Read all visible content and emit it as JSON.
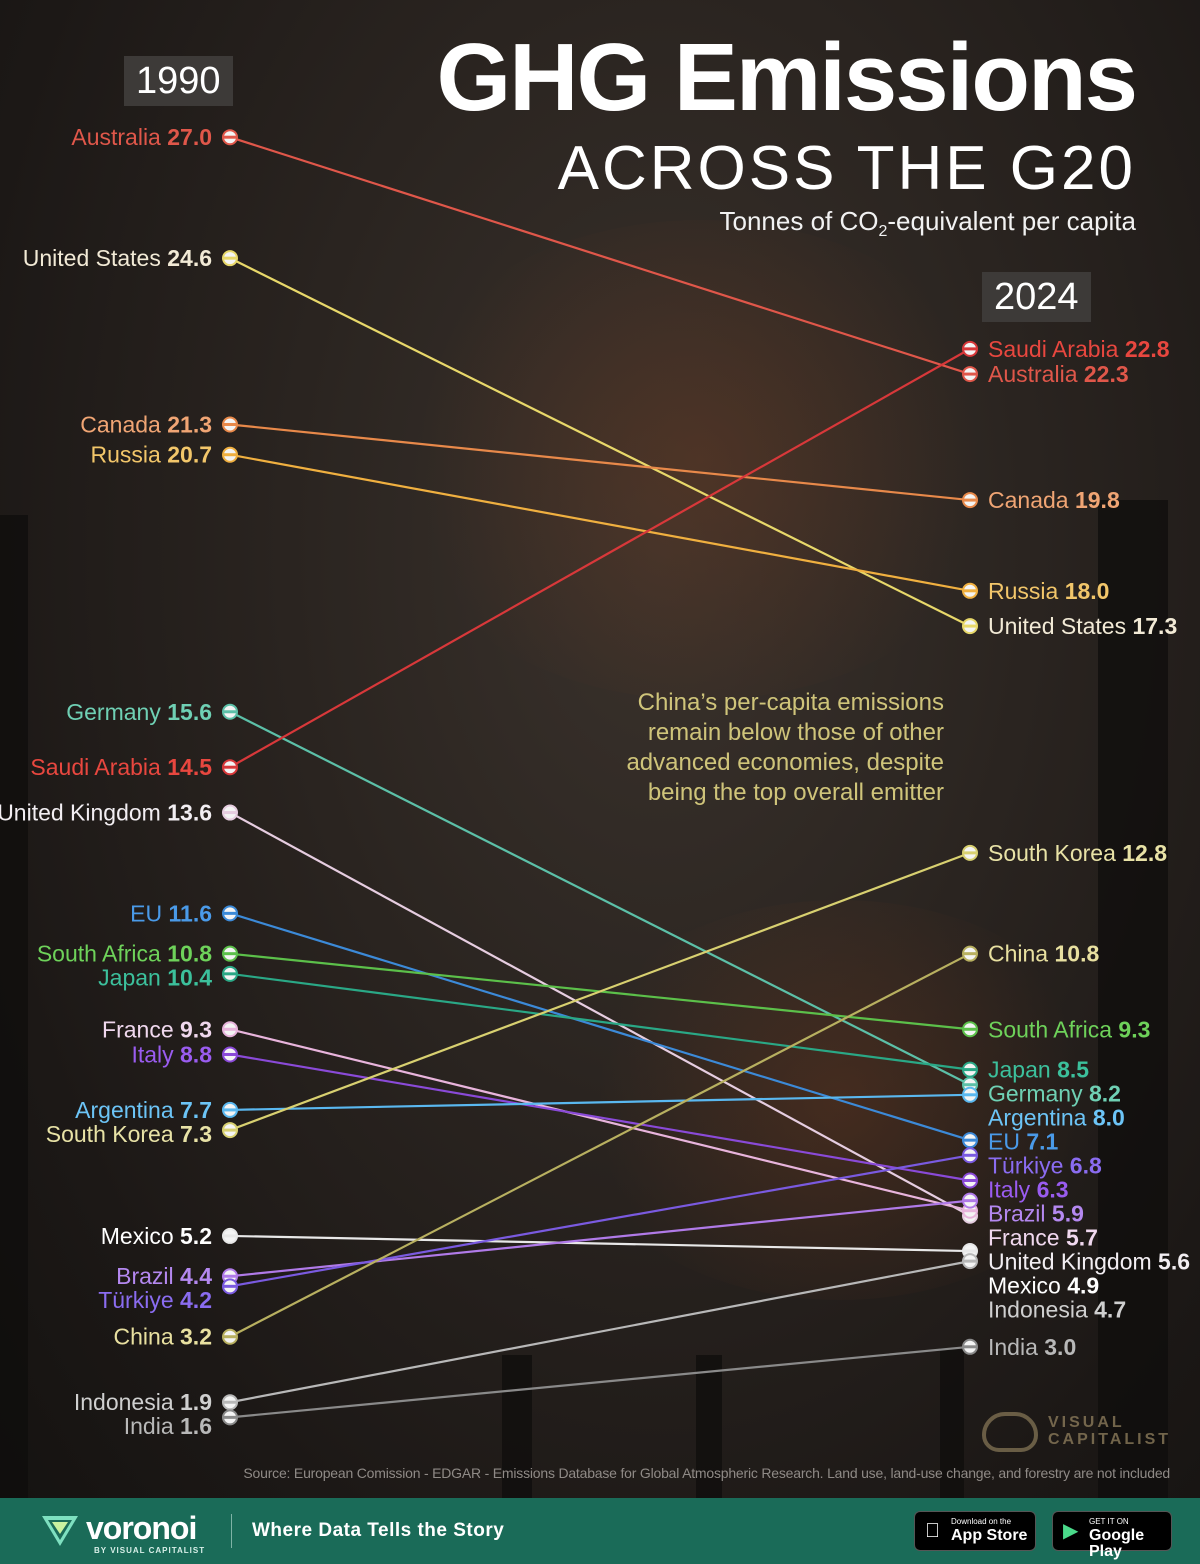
{
  "header": {
    "title": "GHG Emissions",
    "subtitle": "ACROSS THE G20",
    "unit_label": "Tonnes of CO₂-equivalent per capita"
  },
  "years": {
    "left": "1990",
    "right": "2024"
  },
  "annotation": "China’s per-capita emissions remain below those of other advanced economies, despite being the top overall emitter",
  "source": "Source: European Comission - EDGAR - Emissions Database for Global Atmospheric Research. Land use, land-use change, and forestry are not included",
  "brand": {
    "vc_logo_text": "VISUAL CAPITALIST",
    "footer_logo": "voronoi",
    "footer_logo_by": "BY VISUAL CAPITALIST",
    "tagline": "Where Data Tells the Story",
    "app_store_small": "Download on the",
    "app_store_big": "App Store",
    "google_play_small": "GET IT ON",
    "google_play_big": "Google Play"
  },
  "chart_data": {
    "type": "slope",
    "x": [
      "1990",
      "2024"
    ],
    "unit": "Tonnes of CO₂-equivalent per capita",
    "series": [
      {
        "name": "Australia",
        "values": [
          27.0,
          22.3
        ],
        "color": "#e0574a",
        "label_color": "#e0574a"
      },
      {
        "name": "United States",
        "values": [
          24.6,
          17.3
        ],
        "color": "#e8d86a",
        "label_color": "#f2ead6"
      },
      {
        "name": "Canada",
        "values": [
          21.3,
          19.8
        ],
        "color": "#e8894a",
        "label_color": "#f0a574"
      },
      {
        "name": "Russia",
        "values": [
          20.7,
          18.0
        ],
        "color": "#f0b040",
        "label_color": "#f2c66a"
      },
      {
        "name": "Germany",
        "values": [
          15.6,
          8.2
        ],
        "color": "#5cc0a8",
        "label_color": "#6fd0b4"
      },
      {
        "name": "Saudi Arabia",
        "values": [
          14.5,
          22.8
        ],
        "color": "#d8383a",
        "label_color": "#e8473f"
      },
      {
        "name": "United Kingdom",
        "values": [
          13.6,
          5.6
        ],
        "color": "#e6cde0",
        "label_color": "#f2eef2"
      },
      {
        "name": "EU",
        "values": [
          11.6,
          7.1
        ],
        "color": "#3c8ad8",
        "label_color": "#4a9ae8"
      },
      {
        "name": "South Africa",
        "values": [
          10.8,
          9.3
        ],
        "color": "#5cc04a",
        "label_color": "#6ed25a"
      },
      {
        "name": "Japan",
        "values": [
          10.4,
          8.5
        ],
        "color": "#2aa886",
        "label_color": "#3cc09c"
      },
      {
        "name": "France",
        "values": [
          9.3,
          5.7
        ],
        "color": "#e8b4dc",
        "label_color": "#f0d8ee"
      },
      {
        "name": "Italy",
        "values": [
          8.8,
          6.3
        ],
        "color": "#8a4ad8",
        "label_color": "#9a5cf0"
      },
      {
        "name": "Argentina",
        "values": [
          7.7,
          8.0
        ],
        "color": "#5ab8f0",
        "label_color": "#6cc4f6"
      },
      {
        "name": "South Korea",
        "values": [
          7.3,
          12.8
        ],
        "color": "#d8d070",
        "label_color": "#e8e2a6"
      },
      {
        "name": "Mexico",
        "values": [
          5.2,
          4.9
        ],
        "color": "#e8e8e8",
        "label_color": "#ffffff"
      },
      {
        "name": "Brazil",
        "values": [
          4.4,
          5.9
        ],
        "color": "#b07ae8",
        "label_color": "#b488f0"
      },
      {
        "name": "Türkiye",
        "values": [
          4.2,
          6.8
        ],
        "color": "#7a5ae0",
        "label_color": "#8a6cf0"
      },
      {
        "name": "China",
        "values": [
          3.2,
          10.8
        ],
        "color": "#b8b060",
        "label_color": "#e8e0a0"
      },
      {
        "name": "Indonesia",
        "values": [
          1.9,
          4.7
        ],
        "color": "#b8b8b8",
        "label_color": "#cfcfcf"
      },
      {
        "name": "India",
        "values": [
          1.6,
          3.0
        ],
        "color": "#8a8a8a",
        "label_color": "#b8b8b8"
      }
    ]
  }
}
